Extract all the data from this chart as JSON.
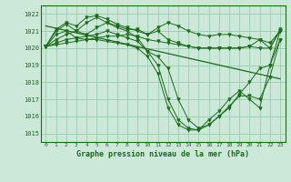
{
  "bg_color": "#cce8d8",
  "grid_color": "#99ccb0",
  "line_color": "#1a6b1a",
  "text_color": "#1a6b1a",
  "title": "Graphe pression niveau de la mer (hPa)",
  "hours": [
    0,
    1,
    2,
    3,
    4,
    5,
    6,
    7,
    8,
    9,
    10,
    11,
    12,
    13,
    14,
    15,
    16,
    17,
    18,
    19,
    20,
    21,
    22,
    23
  ],
  "ylim": [
    1014.5,
    1022.5
  ],
  "yticks": [
    1015,
    1016,
    1017,
    1018,
    1019,
    1020,
    1021,
    1022
  ],
  "series": [
    [
      1020.1,
      1020.8,
      1021.0,
      1020.6,
      1020.5,
      1020.6,
      1020.7,
      1020.7,
      1020.8,
      1020.7,
      1020.5,
      1020.4,
      1020.3,
      1020.2,
      1020.1,
      1020.0,
      1020.0,
      1020.0,
      1020.0,
      1020.0,
      1020.1,
      1020.0,
      1020.0,
      1021.0
    ],
    [
      1020.1,
      1021.0,
      1021.4,
      1021.0,
      1020.8,
      1021.2,
      1021.5,
      1021.3,
      1021.1,
      1021.1,
      1020.8,
      1021.2,
      1021.5,
      1021.3,
      1021.0,
      1020.8,
      1020.7,
      1020.8,
      1020.8,
      1020.7,
      1020.6,
      1020.5,
      1020.3,
      1021.0
    ],
    [
      1020.1,
      1021.1,
      1021.5,
      1021.3,
      1021.8,
      1021.9,
      1021.7,
      1021.4,
      1021.2,
      1021.0,
      1020.8,
      1021.0,
      1020.5,
      1020.3,
      1020.1,
      1020.0,
      1020.0,
      1020.0,
      1020.0,
      1020.0,
      1020.1,
      1020.5,
      1020.0,
      1021.1
    ],
    [
      1020.1,
      1020.5,
      1020.8,
      1021.0,
      1021.5,
      1021.8,
      1021.5,
      1021.2,
      1021.0,
      1020.6,
      1019.8,
      1019.5,
      1018.8,
      1017.0,
      1015.8,
      1015.3,
      1015.5,
      1016.0,
      1016.5,
      1017.3,
      1018.0,
      1018.8,
      1019.0,
      1021.0
    ],
    [
      1020.1,
      1020.3,
      1020.5,
      1020.6,
      1020.7,
      1020.8,
      1021.0,
      1020.8,
      1020.6,
      1020.4,
      1019.8,
      1019.0,
      1017.0,
      1015.8,
      1015.3,
      1015.2,
      1015.5,
      1016.0,
      1016.6,
      1017.2,
      1017.2,
      1017.0,
      1018.3,
      1020.5
    ],
    [
      1020.1,
      1020.2,
      1020.3,
      1020.4,
      1020.5,
      1020.5,
      1020.4,
      1020.3,
      1020.2,
      1020.0,
      1019.5,
      1018.5,
      1016.5,
      1015.5,
      1015.2,
      1015.2,
      1015.8,
      1016.3,
      1017.0,
      1017.5,
      1017.0,
      1016.5,
      1019.0,
      1020.5
    ]
  ],
  "trend_line": [
    [
      0,
      1021.3
    ],
    [
      23,
      1018.2
    ]
  ]
}
